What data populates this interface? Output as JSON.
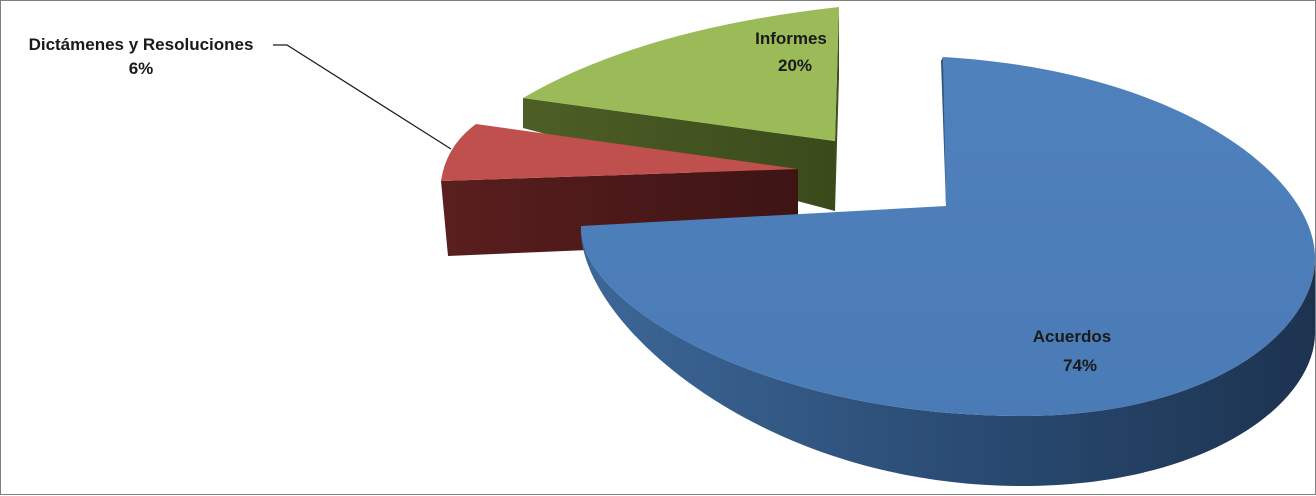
{
  "chart_data": {
    "type": "pie",
    "title": "",
    "slices": [
      {
        "category": "Acuerdos",
        "percent_label": "74%",
        "value": 74,
        "color": "#4f81bd"
      },
      {
        "category": "Dictámenes y Resoluciones",
        "percent_label": "6%",
        "value": 6,
        "color": "#c0504d"
      },
      {
        "category": "Informes",
        "percent_label": "20%",
        "value": 20,
        "color": "#9bbb59"
      }
    ],
    "legend": "none",
    "style": "3d-exploded"
  }
}
